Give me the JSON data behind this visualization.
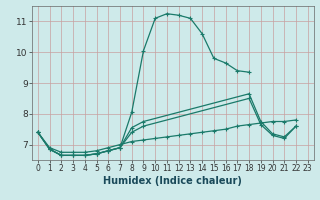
{
  "title": "",
  "xlabel": "Humidex (Indice chaleur)",
  "background_color": "#ceeaea",
  "grid_color": "#c8a0a0",
  "line_color": "#1a7a6a",
  "xlim": [
    -0.5,
    23.5
  ],
  "ylim": [
    6.5,
    11.5
  ],
  "yticks": [
    7,
    8,
    9,
    10,
    11
  ],
  "xticks": [
    0,
    1,
    2,
    3,
    4,
    5,
    6,
    7,
    8,
    9,
    10,
    11,
    12,
    13,
    14,
    15,
    16,
    17,
    18,
    19,
    20,
    21,
    22,
    23
  ],
  "line1_x": [
    0,
    1,
    2,
    3,
    4,
    5,
    6,
    7,
    8,
    9,
    10,
    11,
    12,
    13,
    14,
    15,
    16,
    17,
    18
  ],
  "line1_y": [
    7.4,
    6.85,
    6.65,
    6.65,
    6.65,
    6.7,
    6.8,
    6.9,
    8.05,
    10.05,
    11.1,
    11.25,
    11.2,
    11.1,
    10.6,
    9.8,
    9.65,
    9.4,
    9.35
  ],
  "line2_x": [
    0,
    1,
    2,
    3,
    4,
    5,
    6,
    7,
    8,
    9,
    18,
    19,
    20,
    21,
    22
  ],
  "line2_y": [
    7.4,
    6.85,
    6.65,
    6.65,
    6.65,
    6.7,
    6.8,
    6.9,
    7.4,
    7.6,
    8.5,
    7.65,
    7.3,
    7.2,
    7.6
  ],
  "line3_x": [
    0,
    1,
    2,
    3,
    4,
    5,
    6,
    7,
    8,
    9,
    18,
    19,
    20,
    21,
    22
  ],
  "line3_y": [
    7.4,
    6.85,
    6.65,
    6.65,
    6.65,
    6.7,
    6.8,
    6.9,
    7.55,
    7.75,
    8.65,
    7.75,
    7.35,
    7.25,
    7.6
  ],
  "line4_x": [
    0,
    1,
    2,
    3,
    4,
    5,
    6,
    7,
    8,
    9,
    10,
    11,
    12,
    13,
    14,
    15,
    16,
    17,
    18,
    19,
    20,
    21,
    22
  ],
  "line4_y": [
    7.4,
    6.9,
    6.75,
    6.75,
    6.75,
    6.8,
    6.9,
    7.0,
    7.1,
    7.15,
    7.2,
    7.25,
    7.3,
    7.35,
    7.4,
    7.45,
    7.5,
    7.6,
    7.65,
    7.7,
    7.75,
    7.75,
    7.8
  ]
}
